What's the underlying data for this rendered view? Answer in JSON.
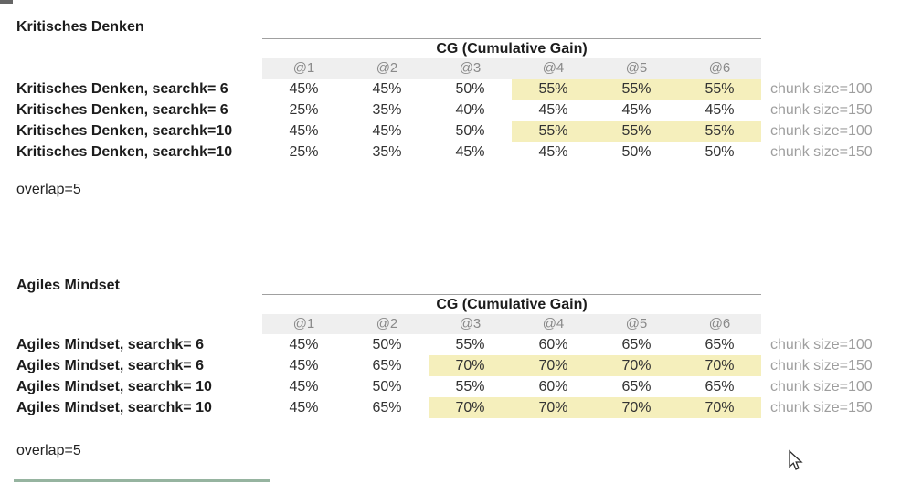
{
  "colors": {
    "highlight": "#f5efbc",
    "band": "#efefef",
    "rule": "#a0a0a0",
    "green_line": "#96b4a0"
  },
  "sections": [
    {
      "title": "Kritisches Denken",
      "footnote": "overlap=5",
      "table": {
        "group_header": "CG (Cumulative Gain)",
        "columns": [
          "@1",
          "@2",
          "@3",
          "@4",
          "@5",
          "@6"
        ],
        "rows": [
          {
            "label": "Kritisches Denken, searchk= 6",
            "values": [
              "45%",
              "45%",
              "50%",
              "55%",
              "55%",
              "55%"
            ],
            "highlight": [
              3,
              4,
              5
            ],
            "annotation": "chunk size=100"
          },
          {
            "label": "Kritisches Denken, searchk= 6",
            "values": [
              "25%",
              "35%",
              "40%",
              "45%",
              "45%",
              "45%"
            ],
            "highlight": [],
            "annotation": "chunk size=150"
          },
          {
            "label": "Kritisches Denken, searchk=10",
            "values": [
              "45%",
              "45%",
              "50%",
              "55%",
              "55%",
              "55%"
            ],
            "highlight": [
              3,
              4,
              5
            ],
            "annotation": "chunk size=100"
          },
          {
            "label": "Kritisches Denken, searchk=10",
            "values": [
              "25%",
              "35%",
              "45%",
              "45%",
              "50%",
              "50%"
            ],
            "highlight": [],
            "annotation": "chunk size=150"
          }
        ]
      }
    },
    {
      "title": "Agiles Mindset",
      "footnote": "overlap=5",
      "table": {
        "group_header": "CG (Cumulative Gain)",
        "columns": [
          "@1",
          "@2",
          "@3",
          "@4",
          "@5",
          "@6"
        ],
        "rows": [
          {
            "label": "Agiles Mindset, searchk= 6",
            "values": [
              "45%",
              "50%",
              "55%",
              "60%",
              "65%",
              "65%"
            ],
            "highlight": [],
            "annotation": "chunk size=100"
          },
          {
            "label": "Agiles Mindset, searchk= 6",
            "values": [
              "45%",
              "65%",
              "70%",
              "70%",
              "70%",
              "70%"
            ],
            "highlight": [
              2,
              3,
              4,
              5
            ],
            "annotation": "chunk size=150"
          },
          {
            "label": "Agiles Mindset, searchk= 10",
            "values": [
              "45%",
              "50%",
              "55%",
              "60%",
              "65%",
              "65%"
            ],
            "highlight": [],
            "annotation": "chunk size=100"
          },
          {
            "label": "Agiles Mindset, searchk= 10",
            "values": [
              "45%",
              "65%",
              "70%",
              "70%",
              "70%",
              "70%"
            ],
            "highlight": [
              2,
              3,
              4,
              5
            ],
            "annotation": "chunk size=150"
          }
        ]
      }
    }
  ],
  "cursor": {
    "icon": "arrow-pointer"
  }
}
